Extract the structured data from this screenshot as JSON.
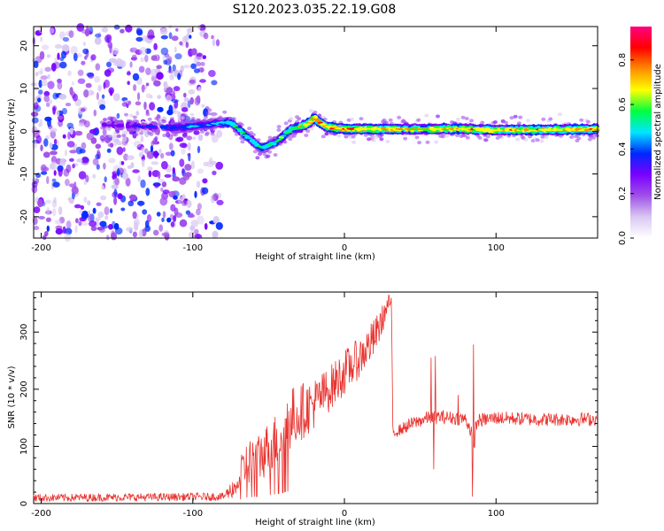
{
  "figure_title": "S120.2023.035.22.19.G08",
  "colors": {
    "snr_line": "#e8322e",
    "axis": "#000000",
    "colormap": [
      "#ffffff",
      "#d9c8f2",
      "#a050e8",
      "#7a00ff",
      "#0028ff",
      "#00e6ff",
      "#00ff40",
      "#ffff00",
      "#ff8c00",
      "#ff0000",
      "#ff0080"
    ]
  },
  "chart_data": [
    {
      "type": "heatmap",
      "title": "",
      "xlabel": "Height of straight line (km)",
      "ylabel": "Frequency (Hz)",
      "xlim": [
        -205,
        167
      ],
      "ylim": [
        -25,
        24.5
      ],
      "xticks": [
        -200,
        -100,
        0,
        100
      ],
      "yticks": [
        -20,
        -10,
        0,
        10,
        20
      ],
      "colorbar": {
        "label": "Normalized spectral amplitude",
        "range": [
          0,
          0.95
        ],
        "ticks": [
          0.0,
          0.2,
          0.4,
          0.6,
          0.8
        ]
      },
      "noise_region_x": [
        -205,
        -82
      ],
      "ridge": [
        {
          "x": -160,
          "f": 1.5,
          "amp": 0.3
        },
        {
          "x": -110,
          "f": 0.8,
          "amp": 0.4
        },
        {
          "x": -85,
          "f": 1.8,
          "amp": 0.45
        },
        {
          "x": -75,
          "f": 2.0,
          "amp": 0.55
        },
        {
          "x": -65,
          "f": -1.0,
          "amp": 0.55
        },
        {
          "x": -55,
          "f": -4.0,
          "amp": 0.5
        },
        {
          "x": -45,
          "f": -2.5,
          "amp": 0.55
        },
        {
          "x": -35,
          "f": 0.5,
          "amp": 0.6
        },
        {
          "x": -25,
          "f": 1.5,
          "amp": 0.7
        },
        {
          "x": -20,
          "f": 3.0,
          "amp": 0.85
        },
        {
          "x": -12,
          "f": 1.0,
          "amp": 0.8
        },
        {
          "x": 0,
          "f": 0.5,
          "amp": 0.8
        },
        {
          "x": 45,
          "f": 0.5,
          "amp": 0.7
        },
        {
          "x": 75,
          "f": 0.5,
          "amp": 0.75
        },
        {
          "x": 100,
          "f": 0.3,
          "amp": 0.75
        },
        {
          "x": 130,
          "f": 0.3,
          "amp": 0.75
        },
        {
          "x": 165,
          "f": 0.5,
          "amp": 0.75
        }
      ]
    },
    {
      "type": "line",
      "title": "",
      "xlabel": "Height of straight line (km)",
      "ylabel": "SNR (10 * v/v)",
      "xlim": [
        -205,
        167
      ],
      "ylim": [
        0,
        370
      ],
      "xticks": [
        -200,
        -100,
        0,
        100
      ],
      "yticks": [
        0,
        100,
        200,
        300
      ],
      "series": [
        {
          "x": [
            -205,
            -80,
            -72,
            -65,
            -55,
            -45,
            -35,
            -20,
            -10,
            0,
            10,
            20,
            30,
            31,
            32,
            35,
            45,
            55,
            60,
            62,
            70,
            80,
            84,
            85,
            86,
            88,
            100,
            130,
            167
          ],
          "y": [
            10,
            12,
            30,
            70,
            85,
            110,
            150,
            175,
            200,
            230,
            255,
            290,
            355,
            345,
            125,
            127,
            140,
            150,
            150,
            152,
            150,
            148,
            125,
            50,
            125,
            145,
            150,
            147,
            148
          ],
          "spread": [
            7,
            7,
            20,
            40,
            45,
            50,
            55,
            45,
            40,
            40,
            35,
            35,
            15,
            15,
            10,
            10,
            12,
            12,
            12,
            12,
            12,
            12,
            15,
            20,
            15,
            12,
            12,
            12,
            12
          ]
        }
      ],
      "spikes": [
        {
          "x": 57,
          "y": 255
        },
        {
          "x": 60,
          "y": 258
        },
        {
          "x": 59,
          "y": 60
        },
        {
          "x": 85,
          "y": 278
        },
        {
          "x": 84.5,
          "y": 12
        },
        {
          "x": 75,
          "y": 190
        }
      ]
    }
  ]
}
